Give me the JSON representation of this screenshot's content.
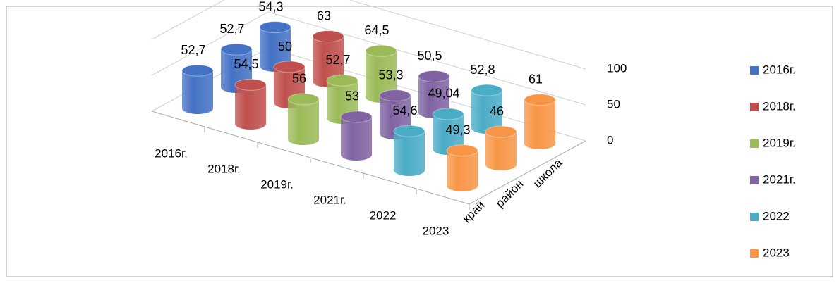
{
  "chart_data": {
    "type": "cylinder3d",
    "categories": [
      "2016г.",
      "2018г.",
      "2019г.",
      "2021г.",
      "2022",
      "2023"
    ],
    "depth_categories": [
      "край",
      "район",
      "школа"
    ],
    "colors": [
      "#4472c4",
      "#c0504d",
      "#9bbb59",
      "#8064a2",
      "#4bacc6",
      "#f79646"
    ],
    "values": [
      [
        52.7,
        52.7,
        54.3
      ],
      [
        54.5,
        50,
        63
      ],
      [
        56,
        52.7,
        64.5
      ],
      [
        53,
        53.3,
        50.5
      ],
      [
        54.6,
        49.04,
        52.8
      ],
      [
        49.3,
        46,
        61
      ]
    ],
    "value_labels": [
      [
        "52,7",
        "52,7",
        "54,3"
      ],
      [
        "54,5",
        "50",
        "63"
      ],
      [
        "56",
        "52,7",
        "64,5"
      ],
      [
        "53",
        "53,3",
        "50,5"
      ],
      [
        "54,6",
        "49,04",
        "52,8"
      ],
      [
        "49,3",
        "46",
        "61"
      ]
    ],
    "zlim": [
      0,
      100
    ],
    "zticks": [
      0,
      50,
      100
    ],
    "grid": true
  }
}
